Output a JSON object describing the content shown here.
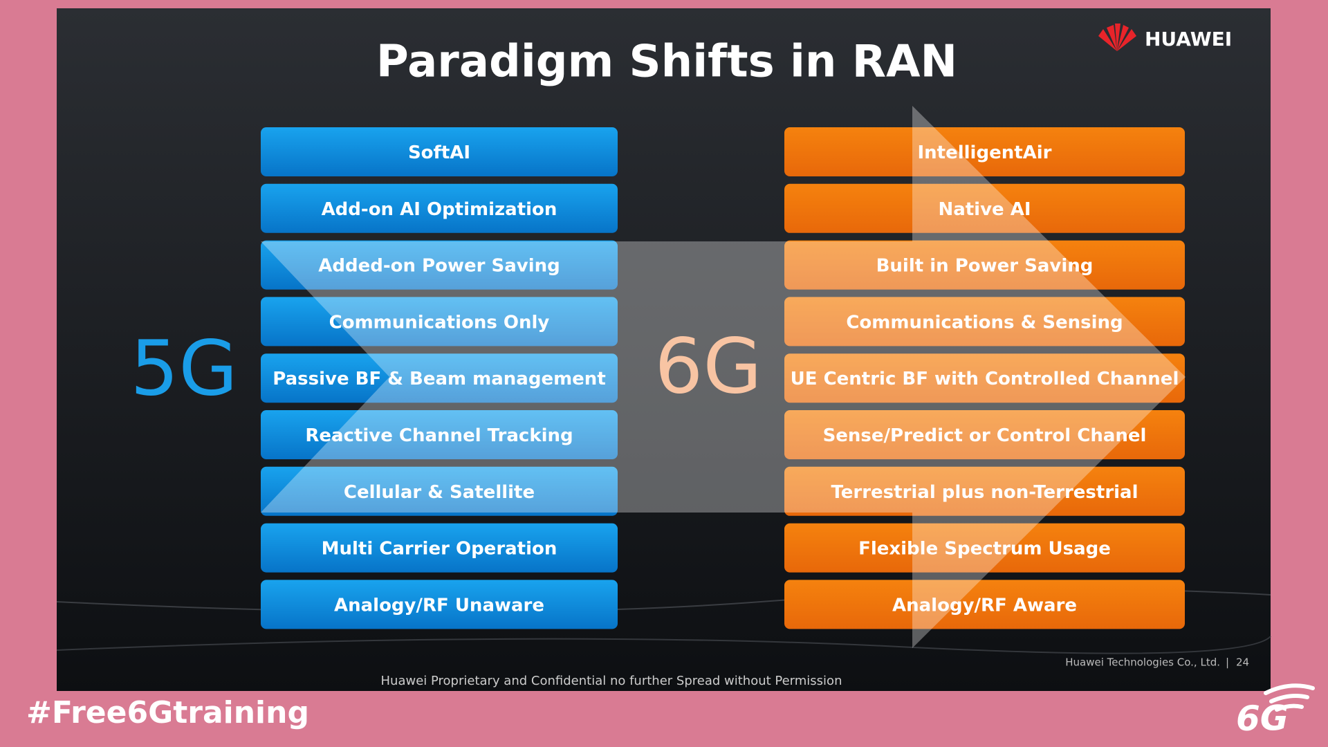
{
  "header": {
    "title": "Paradigm Shifts in RAN",
    "logo": "HUAWEI"
  },
  "left": {
    "label": "5G",
    "items": [
      "SoftAI",
      "Add-on AI Optimization",
      "Added-on Power Saving",
      "Communications Only",
      "Passive BF & Beam management",
      "Reactive Channel Tracking",
      "Cellular & Satellite",
      "Multi Carrier Operation",
      "Analogy/RF Unaware"
    ]
  },
  "right": {
    "label": "6G",
    "items": [
      "IntelligentAir",
      "Native AI",
      "Built in Power Saving",
      "Communications & Sensing",
      "UE Centric BF with Controlled Channel",
      "Sense/Predict or Control Chanel",
      "Terrestrial plus non-Terrestrial",
      "Flexible Spectrum Usage",
      "Analogy/RF Aware"
    ]
  },
  "footer": {
    "company": "Huawei Technologies Co., Ltd.",
    "page": "24",
    "notice": "Huawei Proprietary and Confidential no further Spread without Permission"
  },
  "overlay": {
    "hashtag": "#Free6Gtraining",
    "badge": "6G"
  }
}
